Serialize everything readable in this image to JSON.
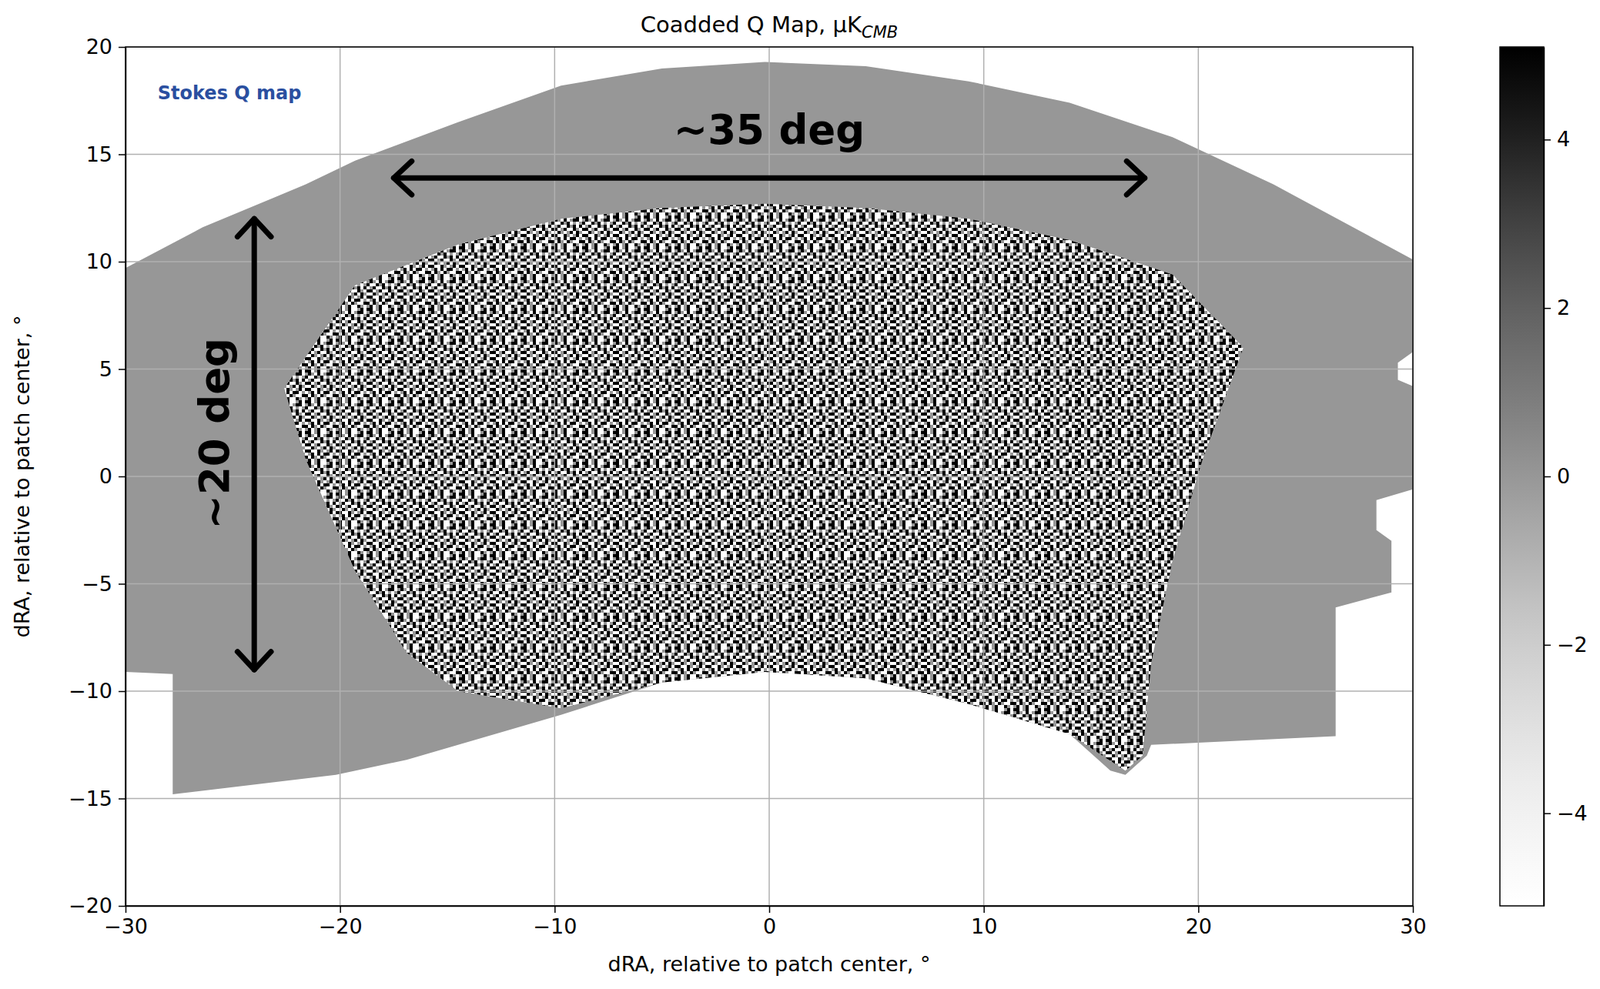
{
  "chart_data": {
    "type": "map",
    "title": "Coadded Q Map, μK",
    "title_subscript": "CMB",
    "x_label": "dRA, relative to patch center, °",
    "y_label": "dRA, relative to patch center, °",
    "xlim": [
      -30,
      30
    ],
    "ylim": [
      -20,
      20
    ],
    "xticks": [
      {
        "value": -30,
        "label": "−30"
      },
      {
        "value": -20,
        "label": "−20"
      },
      {
        "value": -10,
        "label": "−10"
      },
      0,
      10,
      20,
      30
    ],
    "yticks": [
      {
        "value": -20,
        "label": "−20"
      },
      {
        "value": -15,
        "label": "−15"
      },
      {
        "value": -10,
        "label": "−10"
      },
      {
        "value": -5,
        "label": "−5"
      },
      0,
      5,
      10,
      15,
      20
    ],
    "grid": true,
    "footprint": {
      "value": 0,
      "points": [
        [
          -30,
          9.7
        ],
        [
          -26.4,
          11.6
        ],
        [
          -21.6,
          13.6
        ],
        [
          -19.3,
          14.7
        ],
        [
          -14.5,
          16.5
        ],
        [
          -9.7,
          18.2
        ],
        [
          -5,
          19.0
        ],
        [
          -0.2,
          19.3
        ],
        [
          4.5,
          19.1
        ],
        [
          9.3,
          18.4
        ],
        [
          14,
          17.4
        ],
        [
          18.8,
          15.8
        ],
        [
          23.5,
          13.6
        ],
        [
          30,
          10.1
        ],
        [
          30,
          5.8
        ],
        [
          29.3,
          5.3
        ],
        [
          29.3,
          4.5
        ],
        [
          30,
          4.2
        ],
        [
          30,
          -0.6
        ],
        [
          28.3,
          -1.1
        ],
        [
          28.3,
          -2.5
        ],
        [
          29,
          -3.0
        ],
        [
          29,
          -5.4
        ],
        [
          26.4,
          -6.1
        ],
        [
          26.4,
          -12.1
        ],
        [
          17.8,
          -12.5
        ],
        [
          17.6,
          -13.0
        ],
        [
          16.6,
          -13.9
        ],
        [
          15.9,
          -13.7
        ],
        [
          14,
          -12.0
        ],
        [
          9.3,
          -10.6
        ],
        [
          4.5,
          -9.4
        ],
        [
          -0.2,
          -9.1
        ],
        [
          -5,
          -9.6
        ],
        [
          -9.7,
          -11.1
        ],
        [
          -16.9,
          -13.2
        ],
        [
          -20.2,
          -13.9
        ],
        [
          -27.8,
          -14.8
        ],
        [
          -27.8,
          -9.2
        ],
        [
          -30,
          -9.1
        ]
      ]
    },
    "deep_field": {
      "points": [
        [
          -22.6,
          4.1
        ],
        [
          -19.3,
          8.9
        ],
        [
          -14.5,
          10.8
        ],
        [
          -9.7,
          12.0
        ],
        [
          -5,
          12.5
        ],
        [
          -0.2,
          12.7
        ],
        [
          4.5,
          12.5
        ],
        [
          9.3,
          12.0
        ],
        [
          14,
          11.0
        ],
        [
          18.8,
          9.4
        ],
        [
          22.1,
          6.0
        ],
        [
          20.2,
          0.8
        ],
        [
          18.8,
          -3.9
        ],
        [
          17.8,
          -8.7
        ],
        [
          17.4,
          -13.0
        ],
        [
          16.6,
          -13.7
        ],
        [
          14,
          -12.0
        ],
        [
          9.3,
          -10.6
        ],
        [
          4.5,
          -9.4
        ],
        [
          -0.2,
          -9.1
        ],
        [
          -5,
          -9.6
        ],
        [
          -9.7,
          -10.8
        ],
        [
          -14.5,
          -10.0
        ],
        [
          -16.9,
          -8.2
        ],
        [
          -19.3,
          -4.4
        ],
        [
          -21.6,
          0.8
        ]
      ]
    },
    "colorbar": {
      "range": [
        -5.1,
        5.1
      ],
      "ticks": [
        {
          "value": -4,
          "label": "−4"
        },
        {
          "value": -2,
          "label": "−2"
        },
        0,
        2,
        4
      ]
    },
    "annotations": [
      {
        "text": "Stokes Q map",
        "x": -28.5,
        "y": 17.8,
        "color": "#2a4fa0"
      },
      {
        "text": "~35 deg",
        "x": 0,
        "y": 16.0,
        "color": "#000000",
        "arrow": [
          [
            -17.5,
            13.9
          ],
          [
            17.5,
            13.9
          ]
        ]
      },
      {
        "text": "~20 deg",
        "x": -25.7,
        "y": 2.0,
        "color": "#000000",
        "arrow": [
          [
            -24,
            12
          ],
          [
            -24,
            -9
          ]
        ]
      }
    ]
  }
}
